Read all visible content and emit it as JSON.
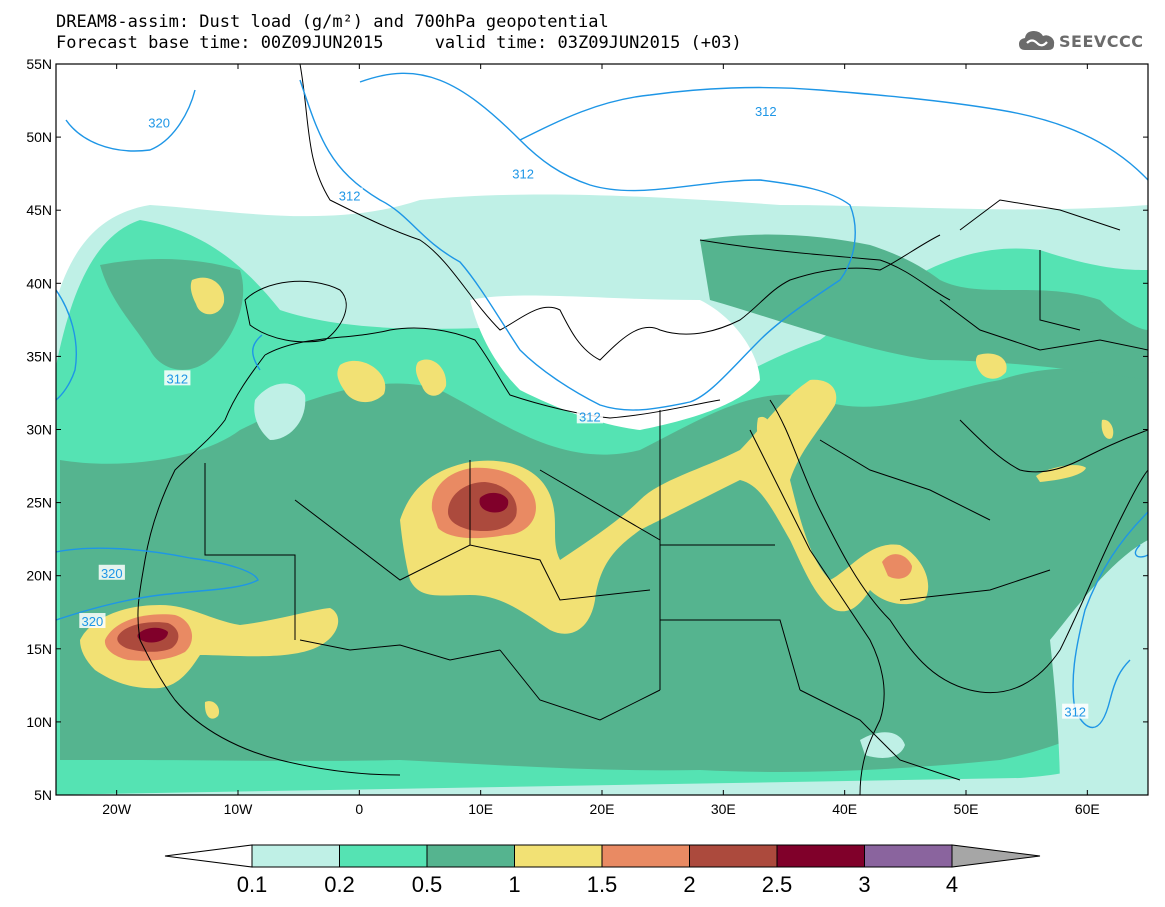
{
  "title": {
    "line1": "DREAM8-assim: Dust load (g/m²) and 700hPa geopotential",
    "line2": "Forecast base time: 00Z09JUN2015     valid time: 03Z09JUN2015 (+03)"
  },
  "logo": {
    "text": "SEEVCCC",
    "icon": "cloud-icon"
  },
  "map": {
    "lon_range": [
      -25,
      65
    ],
    "lat_range": [
      5,
      55
    ],
    "lat_ticks": [
      {
        "value": 55,
        "label": "55N"
      },
      {
        "value": 50,
        "label": "50N"
      },
      {
        "value": 45,
        "label": "45N"
      },
      {
        "value": 40,
        "label": "40N"
      },
      {
        "value": 35,
        "label": "35N"
      },
      {
        "value": 30,
        "label": "30N"
      },
      {
        "value": 25,
        "label": "25N"
      },
      {
        "value": 20,
        "label": "20N"
      },
      {
        "value": 15,
        "label": "15N"
      },
      {
        "value": 10,
        "label": "10N"
      },
      {
        "value": 5,
        "label": "5N"
      }
    ],
    "lon_ticks": [
      {
        "value": -20,
        "label": "20W"
      },
      {
        "value": -10,
        "label": "10W"
      },
      {
        "value": 0,
        "label": "0"
      },
      {
        "value": 10,
        "label": "10E"
      },
      {
        "value": 20,
        "label": "20E"
      },
      {
        "value": 30,
        "label": "30E"
      },
      {
        "value": 40,
        "label": "40E"
      },
      {
        "value": 50,
        "label": "50E"
      },
      {
        "value": 60,
        "label": "60E"
      }
    ],
    "contour_labels": [
      {
        "text": "320",
        "lon": -16.5,
        "lat": 51.0
      },
      {
        "text": "312",
        "lon": -0.8,
        "lat": 46.0
      },
      {
        "text": "312",
        "lon": 13.5,
        "lat": 47.5
      },
      {
        "text": "312",
        "lon": 33.5,
        "lat": 51.8
      },
      {
        "text": "312",
        "lon": -15.0,
        "lat": 33.5
      },
      {
        "text": "312",
        "lon": 19.0,
        "lat": 30.9
      },
      {
        "text": "320",
        "lon": -20.4,
        "lat": 20.2
      },
      {
        "text": "320",
        "lon": -22.0,
        "lat": 16.9
      },
      {
        "text": "312",
        "lon": 59.0,
        "lat": 10.7
      }
    ]
  },
  "colorbar": {
    "labels": [
      "0.1",
      "0.2",
      "0.5",
      "1",
      "1.5",
      "2",
      "2.5",
      "3",
      "4"
    ],
    "colors": [
      "#bff0e6",
      "#55e3b3",
      "#55b48f",
      "#f2e174",
      "#e98a63",
      "#ac4a3d",
      "#80002a",
      "#8a649e",
      "#a6a6a6"
    ]
  },
  "fields": {
    "background": "#ffffff",
    "dust_band": "#55b48f",
    "band_edge": "#55e3b3",
    "faint": "#bff0e6",
    "yellow": "#f2e174",
    "orange": "#e98a63",
    "red": "#ac4a3d",
    "maroon": "#80002a",
    "contour": "#1e96e6"
  }
}
